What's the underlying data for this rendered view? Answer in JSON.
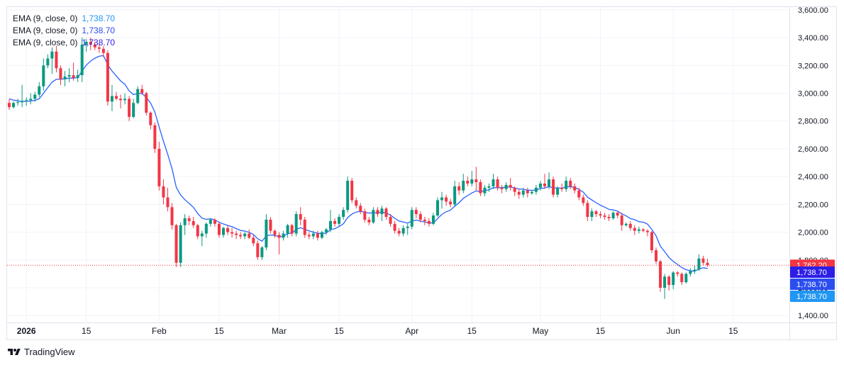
{
  "legend": [
    {
      "label": "EMA (9, close, 0)",
      "value": "1,738.70",
      "color": "#2962ff"
    },
    {
      "label": "EMA (9, close, 0)",
      "value": "1,738.70",
      "color": "#2962ff"
    },
    {
      "label": "EMA (9, close, 0)",
      "value": "1,738.70",
      "color": "#2962ff"
    }
  ],
  "brand": {
    "name": "TradingView"
  },
  "price_tags": [
    {
      "value": "1,762.20",
      "color": "#f23645"
    },
    {
      "value": "1,738.70",
      "color": "#2d1ee6"
    },
    {
      "value": "1,738.70",
      "color": "#2b4ef0"
    },
    {
      "value": "1,738.70",
      "color": "#2196f3"
    }
  ],
  "colors": {
    "up": "#089981",
    "down": "#f23645",
    "ema": "#2962ff",
    "grid": "#f0f3fa"
  },
  "chart_data": {
    "type": "candlestick",
    "ylim": [
      1350,
      3620
    ],
    "yticks": [
      1400,
      1600,
      1800,
      2000,
      2200,
      2400,
      2600,
      2800,
      3000,
      3200,
      3400,
      3600
    ],
    "ytick_labels": [
      "1,400.00",
      "1,600.00",
      "1,800.00",
      "2,000.00",
      "2,200.00",
      "2,400.00",
      "2,600.00",
      "2,800.00",
      "3,000.00",
      "3,200.00",
      "3,400.00",
      "3,600.00"
    ],
    "xticks": [
      {
        "label": "2026",
        "bar": 4,
        "bold": true
      },
      {
        "label": "15",
        "bar": 18,
        "bold": false
      },
      {
        "label": "Feb",
        "bar": 35,
        "bold": false
      },
      {
        "label": "15",
        "bar": 49,
        "bold": false
      },
      {
        "label": "Mar",
        "bar": 63,
        "bold": false
      },
      {
        "label": "15",
        "bar": 77,
        "bold": false
      },
      {
        "label": "Apr",
        "bar": 94,
        "bold": false
      },
      {
        "label": "15",
        "bar": 108,
        "bold": false
      },
      {
        "label": "May",
        "bar": 124,
        "bold": false
      },
      {
        "label": "15",
        "bar": 138,
        "bold": false
      },
      {
        "label": "Jun",
        "bar": 155,
        "bold": false
      },
      {
        "label": "15",
        "bar": 169,
        "bold": false
      }
    ],
    "last_price": 1762.2,
    "ema_value": 1738.7,
    "candles": [
      [
        2930,
        2960,
        2880,
        2900
      ],
      [
        2900,
        2940,
        2890,
        2930
      ],
      [
        2930,
        2960,
        2910,
        2935
      ],
      [
        2935,
        3060,
        2900,
        2945
      ],
      [
        2945,
        2970,
        2910,
        2950
      ],
      [
        2950,
        3000,
        2920,
        2960
      ],
      [
        2960,
        3010,
        2940,
        2990
      ],
      [
        2990,
        3080,
        2970,
        3050
      ],
      [
        3050,
        3250,
        3020,
        3200
      ],
      [
        3200,
        3280,
        3180,
        3250
      ],
      [
        3250,
        3330,
        3140,
        3300
      ],
      [
        3300,
        3340,
        3150,
        3180
      ],
      [
        3180,
        3200,
        3060,
        3100
      ],
      [
        3100,
        3160,
        3050,
        3120
      ],
      [
        3120,
        3180,
        3080,
        3130
      ],
      [
        3130,
        3220,
        3090,
        3110
      ],
      [
        3110,
        3170,
        3080,
        3130
      ],
      [
        3130,
        3400,
        3080,
        3350
      ],
      [
        3350,
        3390,
        3300,
        3370
      ],
      [
        3370,
        3400,
        3310,
        3350
      ],
      [
        3350,
        3370,
        3310,
        3330
      ],
      [
        3330,
        3360,
        3290,
        3320
      ],
      [
        3320,
        3340,
        3260,
        3290
      ],
      [
        3290,
        3310,
        2910,
        2940
      ],
      [
        2940,
        3060,
        2870,
        2980
      ],
      [
        2980,
        3010,
        2950,
        2960
      ],
      [
        2960,
        2990,
        2890,
        2950
      ],
      [
        2950,
        3000,
        2920,
        2960
      ],
      [
        2960,
        2980,
        2800,
        2830
      ],
      [
        2830,
        2960,
        2820,
        2930
      ],
      [
        2930,
        3050,
        2920,
        3030
      ],
      [
        3030,
        3060,
        2990,
        3000
      ],
      [
        3000,
        3010,
        2840,
        2860
      ],
      [
        2860,
        2870,
        2740,
        2770
      ],
      [
        2770,
        2790,
        2570,
        2600
      ],
      [
        2600,
        2650,
        2300,
        2330
      ],
      [
        2330,
        2380,
        2200,
        2250
      ],
      [
        2250,
        2320,
        2150,
        2180
      ],
      [
        2180,
        2210,
        2020,
        2050
      ],
      [
        2050,
        2060,
        1750,
        1780
      ],
      [
        1780,
        2070,
        1750,
        2050
      ],
      [
        2050,
        2130,
        1980,
        2100
      ],
      [
        2100,
        2120,
        2050,
        2080
      ],
      [
        2080,
        2110,
        2030,
        2050
      ],
      [
        2050,
        2060,
        1950,
        1970
      ],
      [
        1970,
        2010,
        1900,
        1990
      ],
      [
        1990,
        2070,
        1960,
        2060
      ],
      [
        2060,
        2100,
        2040,
        2090
      ],
      [
        2090,
        2100,
        2040,
        2060
      ],
      [
        2060,
        2070,
        1960,
        1980
      ],
      [
        1980,
        2040,
        1960,
        2030
      ],
      [
        2030,
        2050,
        1980,
        2000
      ],
      [
        2000,
        2030,
        1960,
        1990
      ],
      [
        1990,
        2010,
        1950,
        1980
      ],
      [
        1980,
        2000,
        1950,
        1970
      ],
      [
        1970,
        2000,
        1950,
        1990
      ],
      [
        1990,
        2020,
        1950,
        1960
      ],
      [
        1960,
        1980,
        1900,
        1920
      ],
      [
        1920,
        1940,
        1800,
        1820
      ],
      [
        1820,
        1900,
        1800,
        1890
      ],
      [
        1890,
        2130,
        1870,
        2090
      ],
      [
        2090,
        2110,
        1990,
        2010
      ],
      [
        2010,
        2020,
        1960,
        1980
      ],
      [
        1980,
        2000,
        1840,
        1960
      ],
      [
        1960,
        2010,
        1940,
        1990
      ],
      [
        1990,
        2060,
        1960,
        2050
      ],
      [
        2050,
        2060,
        1970,
        1990
      ],
      [
        1990,
        2150,
        1970,
        2130
      ],
      [
        2130,
        2180,
        2050,
        2090
      ],
      [
        2090,
        2110,
        1960,
        1980
      ],
      [
        1980,
        2000,
        1950,
        1970
      ],
      [
        1970,
        2010,
        1950,
        1990
      ],
      [
        1990,
        2010,
        1940,
        1960
      ],
      [
        1960,
        2010,
        1950,
        2000
      ],
      [
        2000,
        2030,
        1980,
        2020
      ],
      [
        2020,
        2160,
        2000,
        2080
      ],
      [
        2080,
        2100,
        2040,
        2060
      ],
      [
        2060,
        2130,
        2040,
        2110
      ],
      [
        2110,
        2180,
        2090,
        2160
      ],
      [
        2160,
        2400,
        2140,
        2370
      ],
      [
        2370,
        2390,
        2210,
        2230
      ],
      [
        2230,
        2250,
        2170,
        2190
      ],
      [
        2190,
        2210,
        2130,
        2150
      ],
      [
        2150,
        2170,
        2070,
        2090
      ],
      [
        2090,
        2110,
        2050,
        2070
      ],
      [
        2070,
        2180,
        2060,
        2160
      ],
      [
        2160,
        2180,
        2110,
        2130
      ],
      [
        2130,
        2190,
        2080,
        2170
      ],
      [
        2170,
        2180,
        2090,
        2110
      ],
      [
        2110,
        2130,
        2040,
        2060
      ],
      [
        2060,
        2080,
        1990,
        2010
      ],
      [
        2010,
        2030,
        1970,
        1990
      ],
      [
        1990,
        2050,
        1970,
        2030
      ],
      [
        2030,
        2060,
        1980,
        2040
      ],
      [
        2040,
        2180,
        2020,
        2160
      ],
      [
        2160,
        2180,
        2100,
        2130
      ],
      [
        2130,
        2150,
        2070,
        2090
      ],
      [
        2090,
        2110,
        2050,
        2080
      ],
      [
        2080,
        2100,
        2040,
        2060
      ],
      [
        2060,
        2140,
        2050,
        2120
      ],
      [
        2120,
        2250,
        2110,
        2230
      ],
      [
        2230,
        2290,
        2170,
        2250
      ],
      [
        2250,
        2270,
        2190,
        2220
      ],
      [
        2220,
        2240,
        2180,
        2200
      ],
      [
        2200,
        2370,
        2180,
        2330
      ],
      [
        2330,
        2360,
        2270,
        2300
      ],
      [
        2300,
        2420,
        2280,
        2370
      ],
      [
        2370,
        2400,
        2330,
        2350
      ],
      [
        2350,
        2440,
        2330,
        2380
      ],
      [
        2380,
        2470,
        2300,
        2360
      ],
      [
        2360,
        2380,
        2260,
        2280
      ],
      [
        2280,
        2340,
        2260,
        2320
      ],
      [
        2320,
        2350,
        2290,
        2330
      ],
      [
        2330,
        2420,
        2310,
        2380
      ],
      [
        2380,
        2400,
        2300,
        2320
      ],
      [
        2320,
        2340,
        2280,
        2310
      ],
      [
        2310,
        2360,
        2290,
        2340
      ],
      [
        2340,
        2390,
        2300,
        2320
      ],
      [
        2320,
        2330,
        2260,
        2290
      ],
      [
        2290,
        2310,
        2240,
        2270
      ],
      [
        2270,
        2320,
        2250,
        2300
      ],
      [
        2300,
        2320,
        2250,
        2280
      ],
      [
        2280,
        2300,
        2270,
        2290
      ],
      [
        2290,
        2340,
        2270,
        2320
      ],
      [
        2320,
        2370,
        2300,
        2350
      ],
      [
        2350,
        2420,
        2310,
        2330
      ],
      [
        2330,
        2430,
        2310,
        2380
      ],
      [
        2380,
        2400,
        2250,
        2270
      ],
      [
        2270,
        2330,
        2250,
        2320
      ],
      [
        2320,
        2350,
        2290,
        2310
      ],
      [
        2310,
        2400,
        2290,
        2370
      ],
      [
        2370,
        2390,
        2310,
        2330
      ],
      [
        2330,
        2350,
        2280,
        2300
      ],
      [
        2300,
        2320,
        2230,
        2250
      ],
      [
        2250,
        2270,
        2190,
        2210
      ],
      [
        2210,
        2230,
        2080,
        2110
      ],
      [
        2110,
        2170,
        2080,
        2150
      ],
      [
        2150,
        2160,
        2110,
        2130
      ],
      [
        2130,
        2150,
        2100,
        2120
      ],
      [
        2120,
        2140,
        2090,
        2110
      ],
      [
        2110,
        2130,
        2080,
        2100
      ],
      [
        2100,
        2150,
        2090,
        2140
      ],
      [
        2140,
        2150,
        2100,
        2120
      ],
      [
        2120,
        2140,
        2010,
        2050
      ],
      [
        2050,
        2070,
        2040,
        2060
      ],
      [
        2060,
        2080,
        2010,
        2030
      ],
      [
        2030,
        2050,
        1980,
        2010
      ],
      [
        2010,
        2040,
        1990,
        2020
      ],
      [
        2020,
        2030,
        2000,
        2010
      ],
      [
        2010,
        2020,
        1970,
        2000
      ],
      [
        2000,
        2010,
        1850,
        1870
      ],
      [
        1870,
        1890,
        1770,
        1790
      ],
      [
        1790,
        1800,
        1570,
        1600
      ],
      [
        1600,
        1700,
        1520,
        1680
      ],
      [
        1680,
        1690,
        1580,
        1620
      ],
      [
        1620,
        1720,
        1590,
        1710
      ],
      [
        1710,
        1720,
        1680,
        1700
      ],
      [
        1700,
        1710,
        1620,
        1640
      ],
      [
        1640,
        1710,
        1630,
        1700
      ],
      [
        1700,
        1740,
        1680,
        1720
      ],
      [
        1720,
        1760,
        1700,
        1730
      ],
      [
        1730,
        1840,
        1720,
        1810
      ],
      [
        1810,
        1830,
        1760,
        1780
      ],
      [
        1780,
        1810,
        1750,
        1762.2
      ]
    ],
    "ema": [
      2960,
      2950,
      2945,
      2940,
      2942,
      2944,
      2948,
      2960,
      2999,
      3041,
      3080,
      3100,
      3100,
      3104,
      3109,
      3109,
      3113,
      3160,
      3202,
      3232,
      3252,
      3266,
      3271,
      3205,
      3160,
      3124,
      3089,
      3064,
      3017,
      2990,
      2998,
      2998,
      2970,
      2930,
      2864,
      2757,
      2656,
      2560,
      2458,
      2322,
      2268,
      2234,
      2207,
      2179,
      2134,
      2101,
      2092,
      2097,
      2088,
      2071,
      2059,
      2049,
      2039,
      2026,
      2012,
      2008,
      1999,
      1983,
      1953,
      1935,
      1973,
      1980,
      1976,
      1969,
      1968,
      1990,
      1992,
      2020,
      2032,
      2020,
      2009,
      2000,
      1992,
      1990,
      1994,
      2018,
      2025,
      2040,
      2060,
      2105,
      2130,
      2145,
      2150,
      2144,
      2137,
      2140,
      2140,
      2145,
      2138,
      2123,
      2100,
      2080,
      2073,
      2065,
      2080,
      2087,
      2080,
      2074,
      2067,
      2066,
      2098,
      2128,
      2147,
      2158,
      2188,
      2211,
      2243,
      2263,
      2282,
      2297,
      2292,
      2299,
      2305,
      2320,
      2320,
      2320,
      2325,
      2326,
      2318,
      2311,
      2309,
      2303,
      2301,
      2305,
      2314,
      2318,
      2329,
      2318,
      2318,
      2316,
      2327,
      2328,
      2322,
      2308,
      2288,
      2252,
      2232,
      2212,
      2194,
      2180,
      2164,
      2160,
      2152,
      2132,
      2117,
      2098,
      2090,
      2076,
      2072,
      2058,
      2020,
      1974,
      1899,
      1860,
      1818,
      1790,
      1768,
      1745,
      1730,
      1722,
      1719,
      1735,
      1744,
      1738.7
    ]
  }
}
